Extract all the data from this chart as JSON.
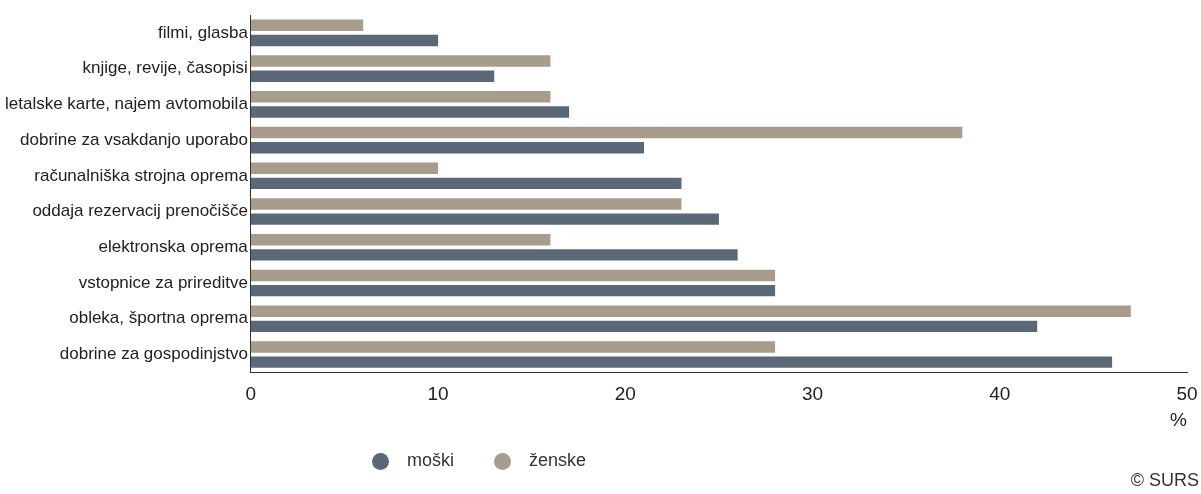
{
  "chart_data": {
    "type": "bar",
    "orientation": "horizontal",
    "xlabel": "%",
    "categories": [
      "filmi, glasba",
      "knjige, revije, časopisi",
      "letalske karte, najem avtomobila",
      "dobrine za vsakdanjo uporabo",
      "računalniška strojna oprema",
      "oddaja rezervacij prenočišče",
      "elektronska oprema",
      "vstopnice za prireditve",
      "obleka, športna oprema",
      "dobrine za gospodinjstvo"
    ],
    "series": [
      {
        "name": "moški",
        "color": "#5a6878",
        "values": [
          10,
          13,
          17,
          21,
          23,
          25,
          26,
          28,
          42,
          46
        ]
      },
      {
        "name": "ženske",
        "color": "#a89c8c",
        "values": [
          6,
          16,
          16,
          38,
          10,
          23,
          16,
          28,
          47,
          28
        ]
      }
    ],
    "xlim": [
      0,
      50
    ],
    "xticks": [
      0,
      10,
      20,
      30,
      40,
      50
    ],
    "grid": false,
    "legend": "bottom",
    "annotations": [
      "© SURS"
    ]
  }
}
